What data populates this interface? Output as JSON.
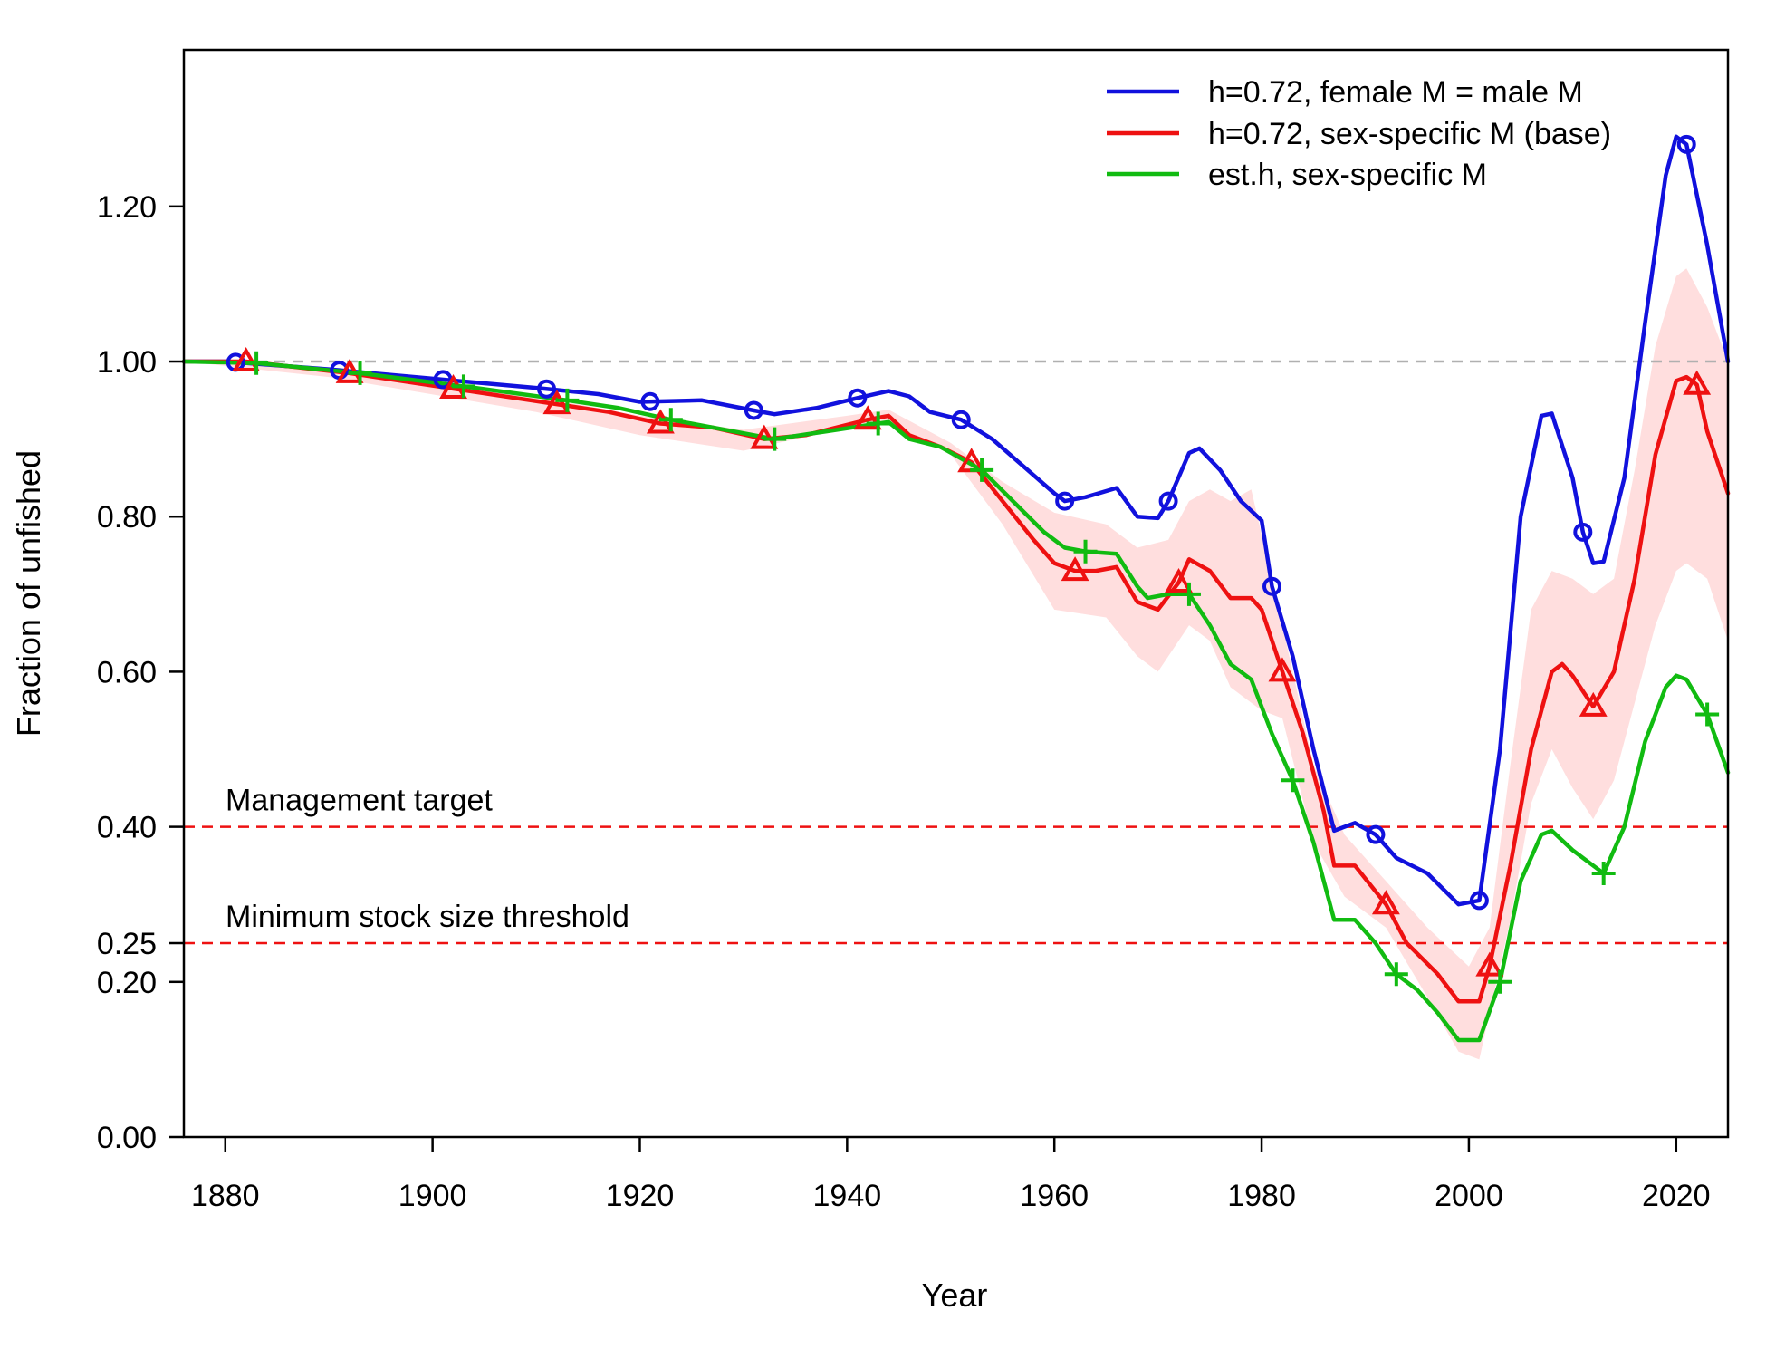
{
  "chart_data": {
    "type": "line",
    "title": "",
    "xlabel": "Year",
    "ylabel": "Fraction of unfished",
    "xlim": [
      1876,
      2025
    ],
    "ylim": [
      0,
      1.34
    ],
    "x_ticks": [
      1880,
      1900,
      1920,
      1940,
      1960,
      1980,
      2000,
      2020
    ],
    "x_tick_labels": [
      "1880",
      "1900",
      "1920",
      "1940",
      "1960",
      "1980",
      "2000",
      "2020"
    ],
    "y_ticks": [
      0,
      0.2,
      0.25,
      0.4,
      0.6,
      0.8,
      1.0,
      1.2
    ],
    "y_tick_labels": [
      "0.00",
      "0.20",
      "0.25",
      "0.40",
      "0.60",
      "0.80",
      "1.00",
      "1.20"
    ],
    "grid": false,
    "legend_position": "top-right",
    "reference_lines": [
      {
        "label": "",
        "y": 1.0,
        "color": "#b0b0b0",
        "style": "dashed"
      },
      {
        "label": "Management target",
        "y": 0.4,
        "color": "#ee1111",
        "style": "dashed"
      },
      {
        "label": "Minimum stock size threshold",
        "y": 0.25,
        "color": "#ee1111",
        "style": "dashed"
      }
    ],
    "series": [
      {
        "name": "h=0.72, female M = male M",
        "color": "#1111dd",
        "marker": "circle",
        "marker_x": [
          1881,
          1891,
          1901,
          1911,
          1921,
          1931,
          1941,
          1951,
          1961,
          1971,
          1981,
          1991,
          2001,
          2011,
          2021
        ],
        "points": [
          [
            1876,
            1.0
          ],
          [
            1880,
            1.0
          ],
          [
            1890,
            0.99
          ],
          [
            1900,
            0.978
          ],
          [
            1910,
            0.966
          ],
          [
            1916,
            0.958
          ],
          [
            1920,
            0.948
          ],
          [
            1926,
            0.95
          ],
          [
            1931,
            0.937
          ],
          [
            1933,
            0.932
          ],
          [
            1937,
            0.94
          ],
          [
            1941,
            0.953
          ],
          [
            1944,
            0.962
          ],
          [
            1946,
            0.955
          ],
          [
            1948,
            0.935
          ],
          [
            1951,
            0.925
          ],
          [
            1954,
            0.9
          ],
          [
            1957,
            0.865
          ],
          [
            1960,
            0.83
          ],
          [
            1961,
            0.82
          ],
          [
            1963,
            0.825
          ],
          [
            1966,
            0.837
          ],
          [
            1968,
            0.8
          ],
          [
            1970,
            0.798
          ],
          [
            1971,
            0.82
          ],
          [
            1973,
            0.882
          ],
          [
            1974,
            0.888
          ],
          [
            1976,
            0.86
          ],
          [
            1978,
            0.82
          ],
          [
            1980,
            0.795
          ],
          [
            1981,
            0.71
          ],
          [
            1983,
            0.62
          ],
          [
            1985,
            0.5
          ],
          [
            1987,
            0.395
          ],
          [
            1989,
            0.405
          ],
          [
            1991,
            0.39
          ],
          [
            1993,
            0.36
          ],
          [
            1996,
            0.34
          ],
          [
            1999,
            0.3
          ],
          [
            2001,
            0.305
          ],
          [
            2003,
            0.5
          ],
          [
            2005,
            0.8
          ],
          [
            2007,
            0.93
          ],
          [
            2008,
            0.933
          ],
          [
            2010,
            0.85
          ],
          [
            2011,
            0.78
          ],
          [
            2012,
            0.74
          ],
          [
            2013,
            0.742
          ],
          [
            2015,
            0.85
          ],
          [
            2017,
            1.05
          ],
          [
            2019,
            1.24
          ],
          [
            2020,
            1.29
          ],
          [
            2021,
            1.28
          ],
          [
            2023,
            1.15
          ],
          [
            2025,
            1.0
          ]
        ]
      },
      {
        "name": "h=0.72, sex-specific M (base)",
        "color": "#ee1111",
        "marker": "triangle",
        "marker_x": [
          1882,
          1892,
          1902,
          1912,
          1922,
          1932,
          1942,
          1952,
          1962,
          1972,
          1982,
          1992,
          2002,
          2012,
          2022
        ],
        "points": [
          [
            1876,
            1.0
          ],
          [
            1882,
            1.0
          ],
          [
            1892,
            0.985
          ],
          [
            1902,
            0.965
          ],
          [
            1912,
            0.945
          ],
          [
            1917,
            0.935
          ],
          [
            1922,
            0.92
          ],
          [
            1927,
            0.915
          ],
          [
            1932,
            0.9
          ],
          [
            1936,
            0.905
          ],
          [
            1942,
            0.925
          ],
          [
            1944,
            0.93
          ],
          [
            1946,
            0.905
          ],
          [
            1949,
            0.89
          ],
          [
            1952,
            0.87
          ],
          [
            1955,
            0.82
          ],
          [
            1958,
            0.77
          ],
          [
            1960,
            0.74
          ],
          [
            1962,
            0.73
          ],
          [
            1964,
            0.73
          ],
          [
            1966,
            0.735
          ],
          [
            1968,
            0.69
          ],
          [
            1970,
            0.68
          ],
          [
            1972,
            0.715
          ],
          [
            1973,
            0.745
          ],
          [
            1975,
            0.73
          ],
          [
            1977,
            0.695
          ],
          [
            1979,
            0.695
          ],
          [
            1980,
            0.68
          ],
          [
            1982,
            0.6
          ],
          [
            1984,
            0.52
          ],
          [
            1986,
            0.42
          ],
          [
            1987,
            0.35
          ],
          [
            1989,
            0.35
          ],
          [
            1992,
            0.3
          ],
          [
            1994,
            0.25
          ],
          [
            1997,
            0.21
          ],
          [
            1999,
            0.175
          ],
          [
            2001,
            0.175
          ],
          [
            2002,
            0.22
          ],
          [
            2004,
            0.35
          ],
          [
            2006,
            0.5
          ],
          [
            2008,
            0.6
          ],
          [
            2009,
            0.61
          ],
          [
            2010,
            0.595
          ],
          [
            2012,
            0.555
          ],
          [
            2014,
            0.6
          ],
          [
            2016,
            0.72
          ],
          [
            2018,
            0.88
          ],
          [
            2020,
            0.975
          ],
          [
            2021,
            0.98
          ],
          [
            2022,
            0.97
          ],
          [
            2023,
            0.91
          ],
          [
            2025,
            0.83
          ]
        ]
      },
      {
        "name": "est.h, sex-specific M",
        "color": "#11bb11",
        "marker": "plus",
        "marker_x": [
          1883,
          1893,
          1903,
          1913,
          1923,
          1933,
          1943,
          1953,
          1963,
          1973,
          1983,
          1993,
          2003,
          2013,
          2023
        ],
        "points": [
          [
            1876,
            1.0
          ],
          [
            1883,
            0.998
          ],
          [
            1893,
            0.985
          ],
          [
            1903,
            0.968
          ],
          [
            1913,
            0.95
          ],
          [
            1918,
            0.94
          ],
          [
            1923,
            0.925
          ],
          [
            1933,
            0.9
          ],
          [
            1938,
            0.91
          ],
          [
            1943,
            0.92
          ],
          [
            1944,
            0.922
          ],
          [
            1946,
            0.9
          ],
          [
            1949,
            0.89
          ],
          [
            1953,
            0.86
          ],
          [
            1956,
            0.82
          ],
          [
            1959,
            0.78
          ],
          [
            1961,
            0.76
          ],
          [
            1963,
            0.755
          ],
          [
            1966,
            0.752
          ],
          [
            1968,
            0.71
          ],
          [
            1969,
            0.695
          ],
          [
            1971,
            0.7
          ],
          [
            1973,
            0.7
          ],
          [
            1975,
            0.66
          ],
          [
            1977,
            0.61
          ],
          [
            1979,
            0.59
          ],
          [
            1981,
            0.52
          ],
          [
            1983,
            0.46
          ],
          [
            1985,
            0.38
          ],
          [
            1987,
            0.28
          ],
          [
            1989,
            0.28
          ],
          [
            1991,
            0.25
          ],
          [
            1993,
            0.21
          ],
          [
            1995,
            0.19
          ],
          [
            1997,
            0.16
          ],
          [
            1999,
            0.125
          ],
          [
            2001,
            0.125
          ],
          [
            2003,
            0.2
          ],
          [
            2005,
            0.33
          ],
          [
            2007,
            0.39
          ],
          [
            2008,
            0.395
          ],
          [
            2010,
            0.37
          ],
          [
            2013,
            0.34
          ],
          [
            2015,
            0.4
          ],
          [
            2017,
            0.51
          ],
          [
            2019,
            0.58
          ],
          [
            2020,
            0.595
          ],
          [
            2021,
            0.59
          ],
          [
            2023,
            0.545
          ],
          [
            2025,
            0.47
          ]
        ]
      }
    ],
    "confidence_band": {
      "series": "h=0.72, sex-specific M (base)",
      "color": "#ffdede",
      "upper": [
        [
          1876,
          1.0
        ],
        [
          1890,
          0.99
        ],
        [
          1910,
          0.955
        ],
        [
          1920,
          0.93
        ],
        [
          1930,
          0.912
        ],
        [
          1940,
          0.93
        ],
        [
          1944,
          0.938
        ],
        [
          1950,
          0.895
        ],
        [
          1955,
          0.845
        ],
        [
          1960,
          0.805
        ],
        [
          1965,
          0.79
        ],
        [
          1968,
          0.76
        ],
        [
          1971,
          0.77
        ],
        [
          1973,
          0.82
        ],
        [
          1975,
          0.835
        ],
        [
          1977,
          0.82
        ],
        [
          1979,
          0.835
        ],
        [
          1982,
          0.66
        ],
        [
          1985,
          0.48
        ],
        [
          1988,
          0.39
        ],
        [
          1992,
          0.33
        ],
        [
          1996,
          0.27
        ],
        [
          2000,
          0.22
        ],
        [
          2002,
          0.27
        ],
        [
          2004,
          0.48
        ],
        [
          2006,
          0.68
        ],
        [
          2008,
          0.73
        ],
        [
          2010,
          0.72
        ],
        [
          2012,
          0.7
        ],
        [
          2014,
          0.72
        ],
        [
          2016,
          0.86
        ],
        [
          2018,
          1.02
        ],
        [
          2020,
          1.11
        ],
        [
          2021,
          1.12
        ],
        [
          2023,
          1.07
        ],
        [
          2025,
          1.0
        ]
      ],
      "lower": [
        [
          1876,
          1.0
        ],
        [
          1890,
          0.98
        ],
        [
          1910,
          0.935
        ],
        [
          1920,
          0.905
        ],
        [
          1930,
          0.885
        ],
        [
          1940,
          0.915
        ],
        [
          1944,
          0.92
        ],
        [
          1950,
          0.88
        ],
        [
          1955,
          0.79
        ],
        [
          1960,
          0.68
        ],
        [
          1965,
          0.67
        ],
        [
          1968,
          0.62
        ],
        [
          1970,
          0.6
        ],
        [
          1973,
          0.66
        ],
        [
          1975,
          0.64
        ],
        [
          1977,
          0.58
        ],
        [
          1980,
          0.55
        ],
        [
          1982,
          0.54
        ],
        [
          1985,
          0.38
        ],
        [
          1988,
          0.31
        ],
        [
          1992,
          0.27
        ],
        [
          1996,
          0.18
        ],
        [
          1999,
          0.11
        ],
        [
          2001,
          0.1
        ],
        [
          2002,
          0.16
        ],
        [
          2004,
          0.28
        ],
        [
          2006,
          0.43
        ],
        [
          2008,
          0.5
        ],
        [
          2010,
          0.45
        ],
        [
          2012,
          0.41
        ],
        [
          2014,
          0.46
        ],
        [
          2016,
          0.56
        ],
        [
          2018,
          0.66
        ],
        [
          2020,
          0.73
        ],
        [
          2021,
          0.74
        ],
        [
          2023,
          0.72
        ],
        [
          2025,
          0.64
        ]
      ]
    }
  }
}
